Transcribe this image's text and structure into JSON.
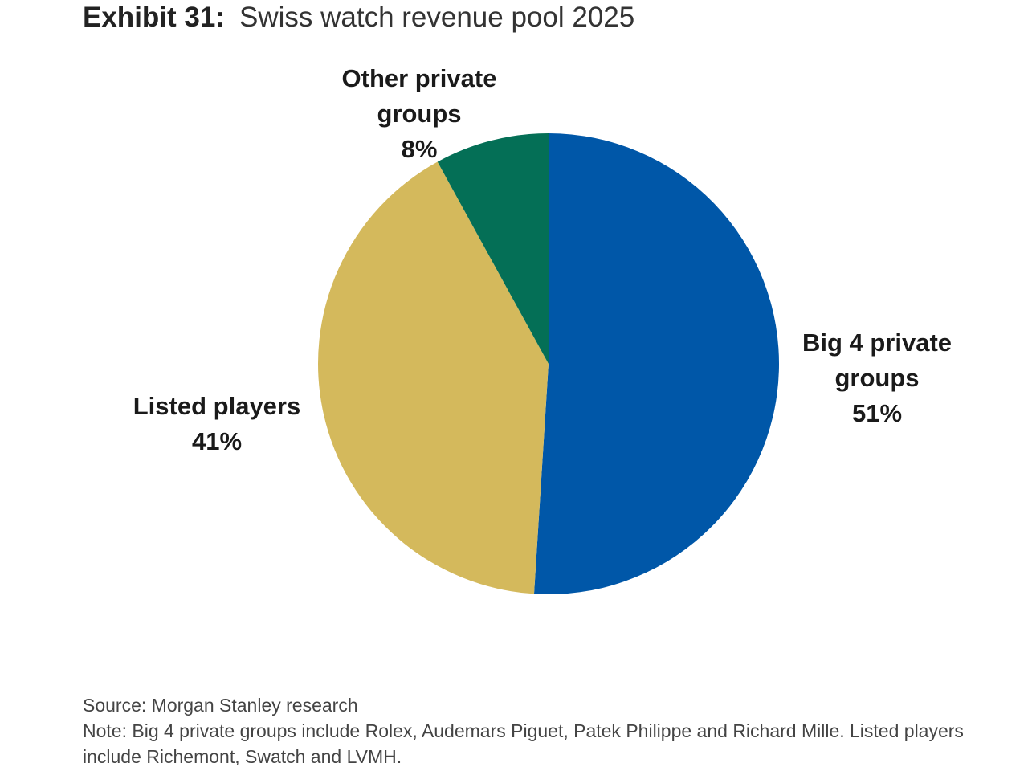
{
  "exhibit": "Exhibit 31:",
  "title": "Swiss watch revenue pool 2025",
  "chart_data": {
    "type": "pie",
    "title": "Swiss watch revenue pool 2025",
    "start": "12 o'clock, clockwise",
    "slices": [
      {
        "name": "Big 4 private groups",
        "value": 51,
        "label_lines": [
          "Big 4 private",
          "groups",
          "51%"
        ],
        "color": "#0057A8"
      },
      {
        "name": "Listed players",
        "value": 41,
        "label_lines": [
          "Listed players",
          "41%"
        ],
        "color": "#D4B95C"
      },
      {
        "name": "Other private groups",
        "value": 8,
        "label_lines": [
          "Other private",
          "groups",
          "8%"
        ],
        "color": "#046F56"
      }
    ]
  },
  "footer": {
    "source": "Source: Morgan Stanley research",
    "note": "Note: Big 4 private groups include Rolex, Audemars Piguet, Patek Philippe and Richard Mille. Listed players include Richemont, Swatch and LVMH."
  }
}
